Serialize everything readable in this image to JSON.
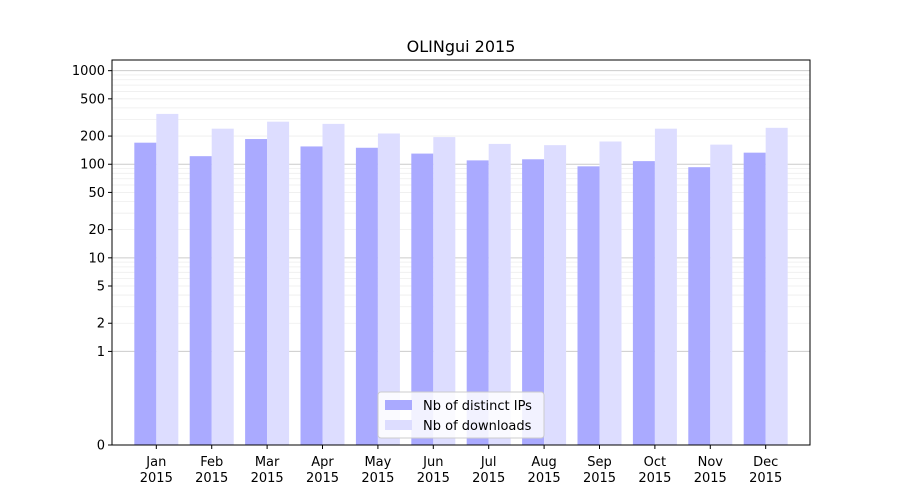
{
  "chart_data": {
    "type": "bar",
    "title": "OLINgui 2015",
    "xlabel": "",
    "ylabel": "",
    "yscale": "symlog",
    "ylim": [
      0,
      1300
    ],
    "grid": true,
    "legend_position": "bottom-center",
    "categories": [
      [
        "Jan",
        "2015"
      ],
      [
        "Feb",
        "2015"
      ],
      [
        "Mar",
        "2015"
      ],
      [
        "Apr",
        "2015"
      ],
      [
        "May",
        "2015"
      ],
      [
        "Jun",
        "2015"
      ],
      [
        "Jul",
        "2015"
      ],
      [
        "Aug",
        "2015"
      ],
      [
        "Sep",
        "2015"
      ],
      [
        "Oct",
        "2015"
      ],
      [
        "Nov",
        "2015"
      ],
      [
        "Dec",
        "2015"
      ]
    ],
    "yticks": [
      {
        "value": 0,
        "label": "0"
      },
      {
        "value": 1,
        "label": "1"
      },
      {
        "value": 2,
        "label": "2"
      },
      {
        "value": 5,
        "label": "5"
      },
      {
        "value": 10,
        "label": "10"
      },
      {
        "value": 20,
        "label": "20"
      },
      {
        "value": 50,
        "label": "50"
      },
      {
        "value": 100,
        "label": "100"
      },
      {
        "value": 200,
        "label": "200"
      },
      {
        "value": 500,
        "label": "500"
      },
      {
        "value": 1000,
        "label": "1000"
      }
    ],
    "series": [
      {
        "name": "Nb of distinct IPs",
        "color": "#aaaaff",
        "values": [
          170,
          122,
          186,
          155,
          150,
          130,
          110,
          113,
          95,
          108,
          93,
          133
        ]
      },
      {
        "name": "Nb of downloads",
        "color": "#ddddff",
        "values": [
          345,
          240,
          285,
          270,
          213,
          195,
          165,
          160,
          175,
          240,
          162,
          245
        ]
      }
    ]
  }
}
